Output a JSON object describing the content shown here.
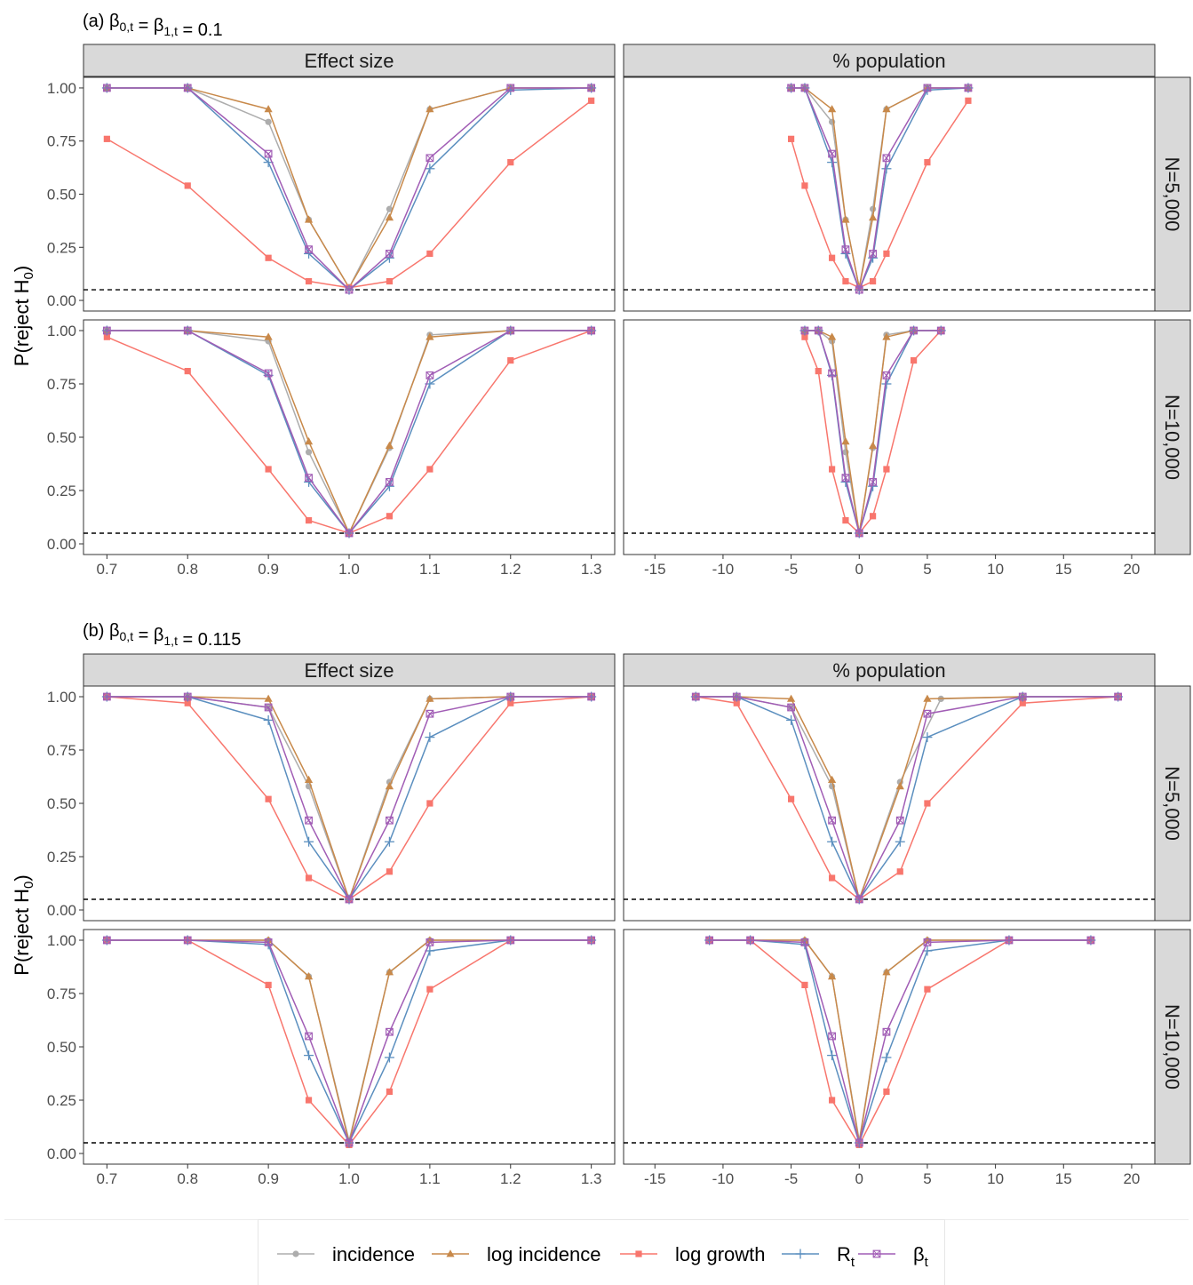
{
  "figure": {
    "y_label": "P(reject H",
    "y_label_sub": "0",
    "y_label_close": ")",
    "legend": [
      {
        "key": "incidence",
        "label": "incidence",
        "sub": "",
        "color": "#ADADAD",
        "marker": "circle"
      },
      {
        "key": "log_incidence",
        "label": "log incidence",
        "sub": "",
        "color": "#C8894A",
        "marker": "triangle"
      },
      {
        "key": "log_growth",
        "label": "log growth",
        "sub": "",
        "color": "#F8766D",
        "marker": "square"
      },
      {
        "key": "Rt",
        "label": "R",
        "sub": "t",
        "color": "#5B8FBF",
        "marker": "plus"
      },
      {
        "key": "beta_t",
        "label": "β",
        "sub": "t",
        "color": "#A15DB5",
        "marker": "boxx"
      }
    ],
    "facet_cols": [
      "Effect size",
      "% population"
    ],
    "facet_rows": [
      "N=5,000",
      "N=10,000"
    ],
    "reference_line_y": 0.05
  },
  "chart_data": [
    {
      "type": "line",
      "panel_label": "(a)",
      "title_prefix": "β",
      "title_sub1": "0,t",
      "title_mid": " = β",
      "title_sub2": "1,t",
      "title_value": " = 0.1",
      "ylim": [
        0,
        1
      ],
      "yticks": [
        "0.00",
        "0.25",
        "0.50",
        "0.75",
        "1.00"
      ],
      "xaxis": {
        "effect": {
          "ticks": [
            0.7,
            0.8,
            0.9,
            1.0,
            1.1,
            1.2,
            1.3
          ],
          "tick_labels": [
            "0.7",
            "0.8",
            "0.9",
            "1.0",
            "1.1",
            "1.2",
            "1.3"
          ]
        },
        "pop": {
          "ticks": [
            -15,
            -10,
            -5,
            0,
            5,
            10,
            15,
            20
          ],
          "tick_labels": [
            "-15",
            "-10",
            "-5",
            "0",
            "5",
            "10",
            "15",
            "20"
          ]
        }
      },
      "effect_x": [
        0.7,
        0.8,
        0.9,
        0.95,
        1.0,
        1.05,
        1.1,
        1.2,
        1.3
      ],
      "pop_x": {
        "N=5,000": [
          -5,
          -4,
          -2,
          -1,
          0,
          1,
          2,
          5,
          8
        ],
        "N=10,000": [
          -4,
          -3,
          -2,
          -1,
          0,
          1,
          2,
          4,
          6
        ]
      },
      "series": {
        "N=5,000": {
          "incidence": [
            1.0,
            1.0,
            0.84,
            0.38,
            0.06,
            0.43,
            0.9,
            1.0,
            1.0
          ],
          "log_incidence": [
            1.0,
            1.0,
            0.9,
            0.38,
            0.06,
            0.39,
            0.9,
            1.0,
            1.0
          ],
          "log_growth": [
            0.76,
            0.54,
            0.2,
            0.09,
            0.06,
            0.09,
            0.22,
            0.65,
            0.94
          ],
          "Rt": [
            1.0,
            1.0,
            0.65,
            0.22,
            0.05,
            0.2,
            0.62,
            0.99,
            1.0
          ],
          "beta_t": [
            1.0,
            1.0,
            0.69,
            0.24,
            0.05,
            0.22,
            0.67,
            1.0,
            1.0
          ]
        },
        "N=10,000": {
          "incidence": [
            1.0,
            1.0,
            0.95,
            0.43,
            0.05,
            0.45,
            0.98,
            1.0,
            1.0
          ],
          "log_incidence": [
            1.0,
            1.0,
            0.97,
            0.48,
            0.05,
            0.46,
            0.97,
            1.0,
            1.0
          ],
          "log_growth": [
            0.97,
            0.81,
            0.35,
            0.11,
            0.05,
            0.13,
            0.35,
            0.86,
            1.0
          ],
          "Rt": [
            1.0,
            1.0,
            0.79,
            0.29,
            0.05,
            0.27,
            0.75,
            1.0,
            1.0
          ],
          "beta_t": [
            1.0,
            1.0,
            0.8,
            0.31,
            0.05,
            0.29,
            0.79,
            1.0,
            1.0
          ]
        }
      }
    },
    {
      "type": "line",
      "panel_label": "(b)",
      "title_prefix": "β",
      "title_sub1": "0,t",
      "title_mid": " = β",
      "title_sub2": "1,t",
      "title_value": " = 0.115",
      "ylim": [
        0,
        1
      ],
      "yticks": [
        "0.00",
        "0.25",
        "0.50",
        "0.75",
        "1.00"
      ],
      "xaxis": {
        "effect": {
          "ticks": [
            0.7,
            0.8,
            0.9,
            1.0,
            1.1,
            1.2,
            1.3
          ],
          "tick_labels": [
            "0.7",
            "0.8",
            "0.9",
            "1.0",
            "1.1",
            "1.2",
            "1.3"
          ]
        },
        "pop": {
          "ticks": [
            -15,
            -10,
            -5,
            0,
            5,
            10,
            15,
            20
          ],
          "tick_labels": [
            "-15",
            "-10",
            "-5",
            "0",
            "5",
            "10",
            "15",
            "20"
          ]
        }
      },
      "effect_x": [
        0.7,
        0.8,
        0.9,
        0.95,
        1.0,
        1.05,
        1.1,
        1.2,
        1.3
      ],
      "pop_x": {
        "N=5,000": [
          -12,
          -9,
          -5,
          -2,
          0,
          3,
          6,
          12,
          19
        ],
        "N=10,000": [
          -11,
          -8,
          -4,
          -2,
          0,
          2,
          5,
          11,
          17
        ]
      },
      "pop_x_alt": {
        "N=5,000": {
          "incidence": [
            -12,
            -9,
            -5,
            -2,
            0,
            3,
            6,
            12,
            19
          ],
          "log_incidence": [
            -12,
            -9,
            -5,
            -2,
            0,
            3,
            5,
            12,
            19
          ],
          "log_growth": [
            -12,
            -9,
            -5,
            -2,
            0,
            3,
            5,
            12,
            19
          ],
          "Rt": [
            -12,
            -9,
            -5,
            -2,
            0,
            3,
            5,
            12,
            19
          ],
          "beta_t": [
            -12,
            -9,
            -5,
            -2,
            0,
            3,
            5,
            12,
            19
          ]
        }
      },
      "series": {
        "N=5,000": {
          "incidence": [
            1.0,
            1.0,
            0.95,
            0.58,
            0.05,
            0.6,
            0.99,
            1.0,
            1.0
          ],
          "log_incidence": [
            1.0,
            1.0,
            0.99,
            0.61,
            0.05,
            0.58,
            0.99,
            1.0,
            1.0
          ],
          "log_growth": [
            1.0,
            0.97,
            0.52,
            0.15,
            0.05,
            0.18,
            0.5,
            0.97,
            1.0
          ],
          "Rt": [
            1.0,
            1.0,
            0.89,
            0.32,
            0.05,
            0.32,
            0.81,
            1.0,
            1.0
          ],
          "beta_t": [
            1.0,
            1.0,
            0.95,
            0.42,
            0.05,
            0.42,
            0.92,
            1.0,
            1.0
          ]
        },
        "N=10,000": {
          "incidence": [
            1.0,
            1.0,
            1.0,
            0.83,
            0.06,
            0.85,
            1.0,
            1.0,
            1.0
          ],
          "log_incidence": [
            1.0,
            1.0,
            1.0,
            0.83,
            0.05,
            0.85,
            1.0,
            1.0,
            1.0
          ],
          "log_growth": [
            1.0,
            1.0,
            0.79,
            0.25,
            0.04,
            0.29,
            0.77,
            1.0,
            1.0
          ],
          "Rt": [
            1.0,
            1.0,
            0.98,
            0.46,
            0.05,
            0.45,
            0.95,
            1.0,
            1.0
          ],
          "beta_t": [
            1.0,
            1.0,
            0.99,
            0.55,
            0.05,
            0.57,
            0.99,
            1.0,
            1.0
          ]
        }
      }
    }
  ]
}
